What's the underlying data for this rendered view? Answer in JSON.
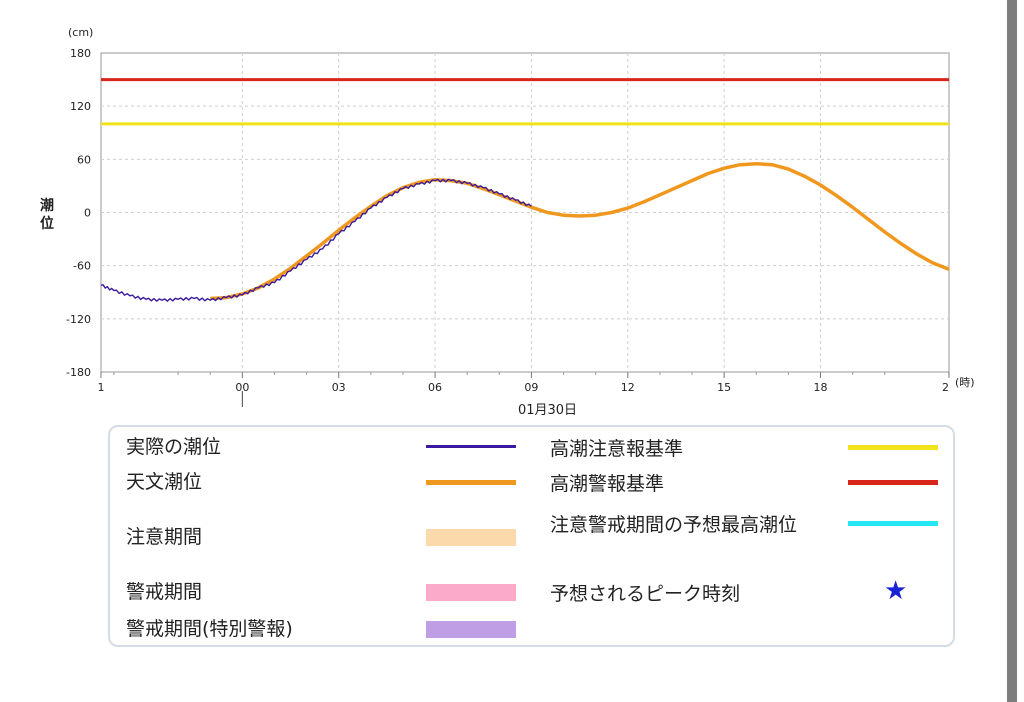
{
  "chart_data": {
    "type": "line",
    "title": "",
    "ylabel": "潮位",
    "yunit": "(cm)",
    "xunit": "(時)",
    "date_label": "01月30日",
    "ylim": [
      -180,
      180
    ],
    "yticks": [
      "180",
      "120",
      "60",
      "0",
      "-60",
      "-120",
      "-180"
    ],
    "xticks": [
      "1",
      "00",
      "03",
      "06",
      "09",
      "12",
      "15",
      "18",
      "2"
    ],
    "grid": true,
    "colors": {
      "actual": "#3a1a9e",
      "astronomical": "#f0981e",
      "high_tide_caution": "#f2e21c",
      "high_tide_warning": "#d9261c"
    },
    "thresholds": [
      {
        "name": "高潮注意報基準",
        "value": 100
      },
      {
        "name": "高潮警報基準",
        "value": 150
      }
    ],
    "series": [
      {
        "name": "天文潮位",
        "x_hours": [
          -1,
          -0.5,
          0,
          0.5,
          1,
          1.5,
          2,
          2.5,
          3,
          3.5,
          4,
          4.5,
          5,
          5.5,
          6,
          6.5,
          7,
          7.5,
          8,
          8.5,
          9,
          9.5,
          10,
          10.5,
          11,
          11.5,
          12,
          12.5,
          13,
          13.5,
          14,
          14.5,
          15,
          15.5,
          16,
          16.5,
          17,
          17.5,
          18,
          18.5,
          19,
          19.5,
          20,
          20.5,
          21,
          21.5,
          22
        ],
        "values": [
          -97,
          -96,
          -92,
          -85,
          -75,
          -63,
          -49,
          -35,
          -20,
          -6,
          7,
          19,
          28,
          34,
          37,
          36,
          33,
          27,
          20,
          13,
          6,
          0,
          -3,
          -4,
          -3,
          0,
          5,
          12,
          20,
          28,
          36,
          44,
          50,
          54,
          55,
          54,
          49,
          41,
          31,
          19,
          6,
          -8,
          -22,
          -35,
          -47,
          -57,
          -64
        ]
      },
      {
        "name": "実際の潮位",
        "x_hours": [
          -4.4,
          -4,
          -3.5,
          -3,
          -2.5,
          -2,
          -1.5,
          -1,
          -0.5,
          0,
          0.5,
          1,
          1.5,
          2,
          2.5,
          3,
          3.5,
          4,
          4.5,
          5,
          5.5,
          6,
          6.5,
          7,
          7.5,
          8,
          8.5,
          9
        ],
        "values": [
          -82,
          -88,
          -94,
          -98,
          -99,
          -98,
          -97,
          -99,
          -96,
          -93,
          -85,
          -79,
          -66,
          -53,
          -41,
          -24,
          -10,
          5,
          17,
          27,
          32,
          36,
          36,
          33,
          28,
          21,
          14,
          7
        ]
      }
    ],
    "legend": [
      {
        "label": "実際の潮位",
        "symbol": "line",
        "color": "#3a1a9e"
      },
      {
        "label": "天文潮位",
        "symbol": "line",
        "color": "#f0981e"
      },
      {
        "label": "注意期間",
        "symbol": "band",
        "color": "#fcd9aa"
      },
      {
        "label": "警戒期間",
        "symbol": "band",
        "color": "#fbaac9"
      },
      {
        "label": "警戒期間(特別警報)",
        "symbol": "band",
        "color": "#bf9ee6"
      },
      {
        "label": "高潮注意報基準",
        "symbol": "line",
        "color": "#f2e21c"
      },
      {
        "label": "高潮警報基準",
        "symbol": "line",
        "color": "#d9261c"
      },
      {
        "label": "注意警戒期間の予想最高潮位",
        "symbol": "line",
        "color": "#25e6f5"
      },
      {
        "label": "予想されるピーク時刻",
        "symbol": "star",
        "color": "#1a22d6"
      }
    ]
  }
}
